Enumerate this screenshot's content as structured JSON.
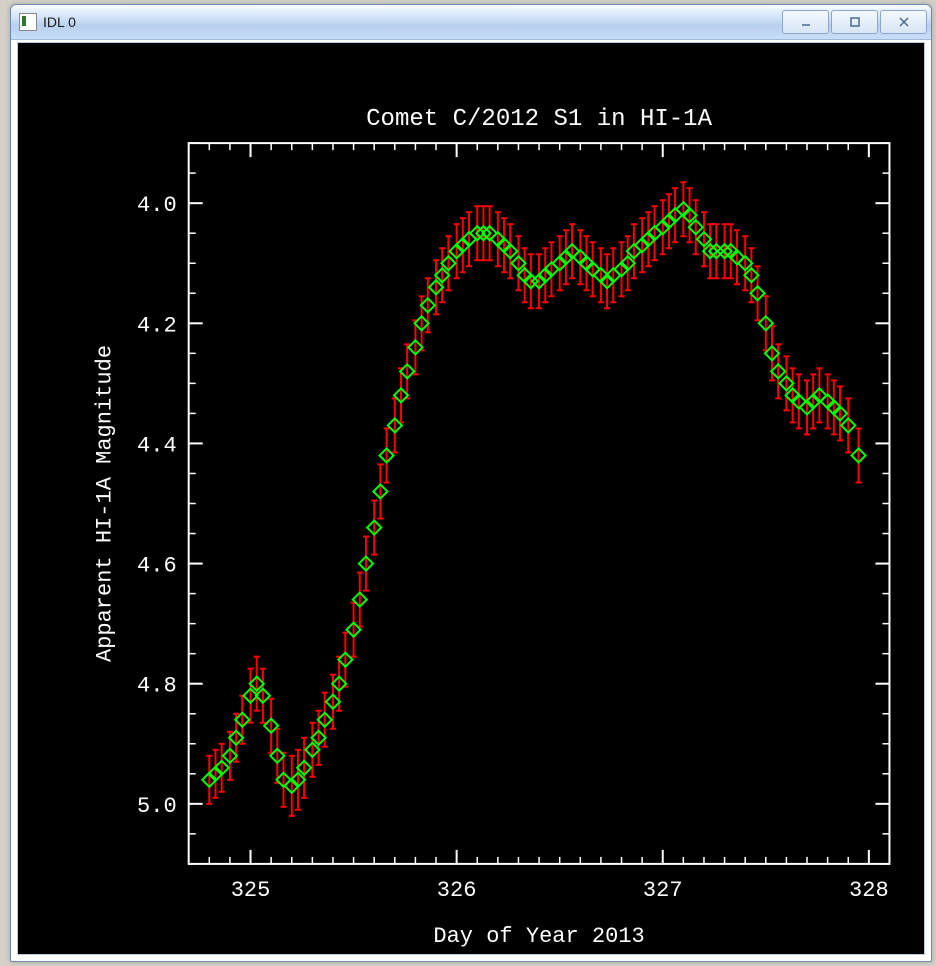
{
  "window": {
    "title": "IDL 0"
  },
  "chart": {
    "type": "scatter_errorbar",
    "title": "Comet C/2012 S1 in HI-1A",
    "title_fontsize": 24,
    "xlabel": "Day of Year 2013",
    "ylabel": "Apparent HI-1A Magnitude",
    "label_fontsize": 22,
    "tick_fontsize": 22,
    "background_color": "#000000",
    "axis_color": "#ffffff",
    "text_color": "#ffffff",
    "marker_color": "#00ff00",
    "error_color": "#ff0000",
    "marker_style": "diamond",
    "marker_size": 7,
    "error_linewidth": 2,
    "error_capwidth": 6,
    "xlim": [
      324.7,
      328.1
    ],
    "ylim": [
      5.1,
      3.9
    ],
    "y_inverted": true,
    "xticks_major": [
      325,
      326,
      327,
      328
    ],
    "yticks_major": [
      4.0,
      4.2,
      4.4,
      4.6,
      4.8,
      5.0
    ],
    "x_minor_step": 0.1,
    "y_minor_step": 0.05,
    "data": [
      {
        "x": 324.8,
        "y": 4.96,
        "err": 0.04
      },
      {
        "x": 324.83,
        "y": 4.95,
        "err": 0.04
      },
      {
        "x": 324.86,
        "y": 4.94,
        "err": 0.04
      },
      {
        "x": 324.9,
        "y": 4.92,
        "err": 0.04
      },
      {
        "x": 324.93,
        "y": 4.89,
        "err": 0.04
      },
      {
        "x": 324.96,
        "y": 4.86,
        "err": 0.04
      },
      {
        "x": 325.0,
        "y": 4.82,
        "err": 0.045
      },
      {
        "x": 325.03,
        "y": 4.8,
        "err": 0.045
      },
      {
        "x": 325.06,
        "y": 4.82,
        "err": 0.045
      },
      {
        "x": 325.1,
        "y": 4.87,
        "err": 0.045
      },
      {
        "x": 325.13,
        "y": 4.92,
        "err": 0.045
      },
      {
        "x": 325.16,
        "y": 4.96,
        "err": 0.045
      },
      {
        "x": 325.2,
        "y": 4.97,
        "err": 0.05
      },
      {
        "x": 325.23,
        "y": 4.96,
        "err": 0.05
      },
      {
        "x": 325.26,
        "y": 4.94,
        "err": 0.05
      },
      {
        "x": 325.3,
        "y": 4.91,
        "err": 0.045
      },
      {
        "x": 325.33,
        "y": 4.89,
        "err": 0.045
      },
      {
        "x": 325.36,
        "y": 4.86,
        "err": 0.045
      },
      {
        "x": 325.4,
        "y": 4.83,
        "err": 0.045
      },
      {
        "x": 325.43,
        "y": 4.8,
        "err": 0.045
      },
      {
        "x": 325.46,
        "y": 4.76,
        "err": 0.045
      },
      {
        "x": 325.5,
        "y": 4.71,
        "err": 0.045
      },
      {
        "x": 325.53,
        "y": 4.66,
        "err": 0.045
      },
      {
        "x": 325.56,
        "y": 4.6,
        "err": 0.045
      },
      {
        "x": 325.6,
        "y": 4.54,
        "err": 0.045
      },
      {
        "x": 325.63,
        "y": 4.48,
        "err": 0.045
      },
      {
        "x": 325.66,
        "y": 4.42,
        "err": 0.045
      },
      {
        "x": 325.7,
        "y": 4.37,
        "err": 0.045
      },
      {
        "x": 325.73,
        "y": 4.32,
        "err": 0.045
      },
      {
        "x": 325.76,
        "y": 4.28,
        "err": 0.045
      },
      {
        "x": 325.8,
        "y": 4.24,
        "err": 0.045
      },
      {
        "x": 325.83,
        "y": 4.2,
        "err": 0.045
      },
      {
        "x": 325.86,
        "y": 4.17,
        "err": 0.045
      },
      {
        "x": 325.9,
        "y": 4.14,
        "err": 0.045
      },
      {
        "x": 325.93,
        "y": 4.12,
        "err": 0.045
      },
      {
        "x": 325.96,
        "y": 4.1,
        "err": 0.045
      },
      {
        "x": 326.0,
        "y": 4.08,
        "err": 0.045
      },
      {
        "x": 326.03,
        "y": 4.07,
        "err": 0.045
      },
      {
        "x": 326.06,
        "y": 4.06,
        "err": 0.045
      },
      {
        "x": 326.1,
        "y": 4.05,
        "err": 0.045
      },
      {
        "x": 326.13,
        "y": 4.05,
        "err": 0.045
      },
      {
        "x": 326.16,
        "y": 4.05,
        "err": 0.045
      },
      {
        "x": 326.2,
        "y": 4.06,
        "err": 0.045
      },
      {
        "x": 326.23,
        "y": 4.07,
        "err": 0.045
      },
      {
        "x": 326.26,
        "y": 4.08,
        "err": 0.045
      },
      {
        "x": 326.3,
        "y": 4.1,
        "err": 0.045
      },
      {
        "x": 326.33,
        "y": 4.12,
        "err": 0.045
      },
      {
        "x": 326.36,
        "y": 4.13,
        "err": 0.045
      },
      {
        "x": 326.4,
        "y": 4.13,
        "err": 0.045
      },
      {
        "x": 326.43,
        "y": 4.12,
        "err": 0.045
      },
      {
        "x": 326.46,
        "y": 4.11,
        "err": 0.045
      },
      {
        "x": 326.5,
        "y": 4.1,
        "err": 0.045
      },
      {
        "x": 326.53,
        "y": 4.09,
        "err": 0.045
      },
      {
        "x": 326.56,
        "y": 4.08,
        "err": 0.045
      },
      {
        "x": 326.6,
        "y": 4.09,
        "err": 0.045
      },
      {
        "x": 326.63,
        "y": 4.1,
        "err": 0.045
      },
      {
        "x": 326.66,
        "y": 4.11,
        "err": 0.045
      },
      {
        "x": 326.7,
        "y": 4.12,
        "err": 0.045
      },
      {
        "x": 326.73,
        "y": 4.13,
        "err": 0.045
      },
      {
        "x": 326.76,
        "y": 4.12,
        "err": 0.045
      },
      {
        "x": 326.8,
        "y": 4.11,
        "err": 0.045
      },
      {
        "x": 326.83,
        "y": 4.1,
        "err": 0.045
      },
      {
        "x": 326.86,
        "y": 4.08,
        "err": 0.045
      },
      {
        "x": 326.9,
        "y": 4.07,
        "err": 0.045
      },
      {
        "x": 326.93,
        "y": 4.06,
        "err": 0.045
      },
      {
        "x": 326.96,
        "y": 4.05,
        "err": 0.045
      },
      {
        "x": 327.0,
        "y": 4.04,
        "err": 0.045
      },
      {
        "x": 327.03,
        "y": 4.03,
        "err": 0.045
      },
      {
        "x": 327.06,
        "y": 4.02,
        "err": 0.045
      },
      {
        "x": 327.1,
        "y": 4.01,
        "err": 0.045
      },
      {
        "x": 327.13,
        "y": 4.02,
        "err": 0.045
      },
      {
        "x": 327.16,
        "y": 4.04,
        "err": 0.045
      },
      {
        "x": 327.2,
        "y": 4.06,
        "err": 0.045
      },
      {
        "x": 327.23,
        "y": 4.08,
        "err": 0.045
      },
      {
        "x": 327.26,
        "y": 4.08,
        "err": 0.045
      },
      {
        "x": 327.3,
        "y": 4.08,
        "err": 0.045
      },
      {
        "x": 327.33,
        "y": 4.08,
        "err": 0.045
      },
      {
        "x": 327.36,
        "y": 4.09,
        "err": 0.045
      },
      {
        "x": 327.4,
        "y": 4.1,
        "err": 0.045
      },
      {
        "x": 327.43,
        "y": 4.12,
        "err": 0.045
      },
      {
        "x": 327.46,
        "y": 4.15,
        "err": 0.045
      },
      {
        "x": 327.5,
        "y": 4.2,
        "err": 0.045
      },
      {
        "x": 327.53,
        "y": 4.25,
        "err": 0.045
      },
      {
        "x": 327.56,
        "y": 4.28,
        "err": 0.045
      },
      {
        "x": 327.6,
        "y": 4.3,
        "err": 0.045
      },
      {
        "x": 327.63,
        "y": 4.32,
        "err": 0.045
      },
      {
        "x": 327.66,
        "y": 4.33,
        "err": 0.045
      },
      {
        "x": 327.7,
        "y": 4.34,
        "err": 0.045
      },
      {
        "x": 327.73,
        "y": 4.33,
        "err": 0.045
      },
      {
        "x": 327.76,
        "y": 4.32,
        "err": 0.045
      },
      {
        "x": 327.8,
        "y": 4.33,
        "err": 0.045
      },
      {
        "x": 327.83,
        "y": 4.34,
        "err": 0.045
      },
      {
        "x": 327.86,
        "y": 4.35,
        "err": 0.045
      },
      {
        "x": 327.9,
        "y": 4.37,
        "err": 0.045
      },
      {
        "x": 327.95,
        "y": 4.42,
        "err": 0.045
      }
    ]
  }
}
